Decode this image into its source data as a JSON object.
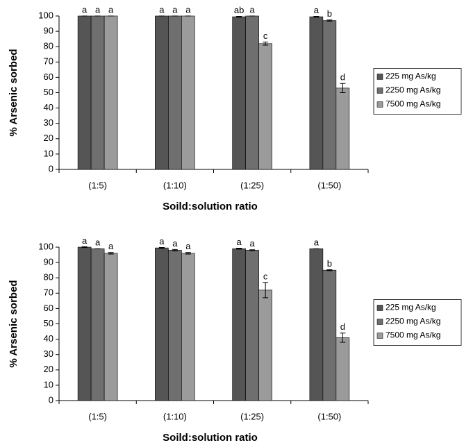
{
  "chart_data": [
    {
      "type": "bar",
      "y_label": "% Arsenic sorbed",
      "x_label": "Soild:solution ratio",
      "categories": [
        "(1:5)",
        "(1:10)",
        "(1:25)",
        "(1:50)"
      ],
      "series": [
        {
          "name": "225 mg As/kg",
          "color": "#555555",
          "values": [
            100,
            100,
            99.5,
            99.5
          ],
          "errors": [
            0,
            0,
            0.3,
            0.3
          ],
          "labels": [
            "a",
            "a",
            "ab",
            "a"
          ]
        },
        {
          "name": "2250 mg As/kg",
          "color": "#6f6f6f",
          "values": [
            100,
            100,
            100,
            97
          ],
          "errors": [
            0,
            0,
            0,
            0.4
          ],
          "labels": [
            "a",
            "a",
            "a",
            "b"
          ]
        },
        {
          "name": "7500 mg As/kg",
          "color": "#9b9b9b",
          "values": [
            100,
            100,
            82,
            53
          ],
          "errors": [
            0,
            0,
            1,
            3
          ],
          "labels": [
            "a",
            "a",
            "c",
            "d"
          ]
        }
      ],
      "ylim": [
        0,
        100
      ],
      "yticks": [
        0,
        10,
        20,
        30,
        40,
        50,
        60,
        70,
        80,
        90,
        100
      ],
      "grid": false,
      "legend": "right"
    },
    {
      "type": "bar",
      "y_label": "% Arsenic sorbed",
      "x_label": "Soild:solution ratio",
      "categories": [
        "(1:5)",
        "(1:10)",
        "(1:25)",
        "(1:50)"
      ],
      "series": [
        {
          "name": "225 mg As/kg",
          "color": "#555555",
          "values": [
            100,
            99.5,
            99,
            99
          ],
          "errors": [
            0.3,
            0.3,
            0.3,
            0
          ],
          "labels": [
            "a",
            "a",
            "a",
            "a"
          ]
        },
        {
          "name": "2250 mg As/kg",
          "color": "#6f6f6f",
          "values": [
            99,
            98,
            98,
            85
          ],
          "errors": [
            0,
            0.5,
            0.3,
            0.3
          ],
          "labels": [
            "a",
            "a",
            "a",
            "b"
          ]
        },
        {
          "name": "7500 mg As/kg",
          "color": "#9b9b9b",
          "values": [
            96,
            96,
            72,
            41
          ],
          "errors": [
            0.5,
            0.5,
            5,
            3
          ],
          "labels": [
            "a",
            "a",
            "c",
            "d"
          ]
        }
      ],
      "ylim": [
        0,
        100
      ],
      "yticks": [
        0,
        10,
        20,
        30,
        40,
        50,
        60,
        70,
        80,
        90,
        100
      ],
      "grid": false,
      "legend": "right"
    }
  ]
}
